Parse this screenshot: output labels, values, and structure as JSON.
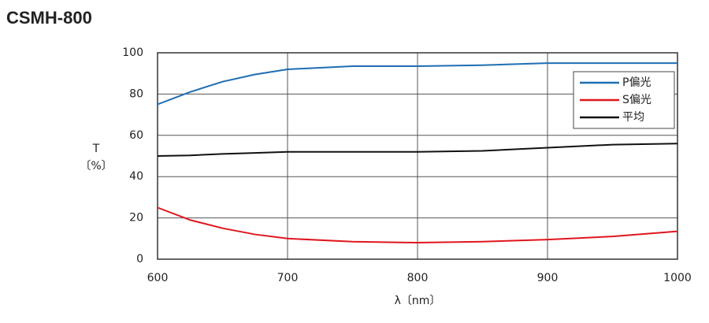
{
  "chart_data": {
    "type": "line",
    "title": "CSMH-800",
    "xlabel": "λ〔nm〕",
    "ylabel": "T",
    "ylabel_unit": "〔%〕",
    "x": [
      600,
      625,
      650,
      675,
      700,
      750,
      800,
      850,
      900,
      950,
      1000
    ],
    "series": [
      {
        "name": "P偏光",
        "color": "#1f6db3",
        "values": [
          75,
          81,
          86,
          89.5,
          92,
          93.5,
          93.5,
          94,
          95,
          95,
          95
        ]
      },
      {
        "name": "S偏光",
        "color": "#e0161e",
        "values": [
          25,
          19,
          15,
          12,
          10,
          8.5,
          8,
          8.5,
          9.5,
          11,
          13.5
        ]
      },
      {
        "name": "平均",
        "color": "#111111",
        "values": [
          50,
          50.3,
          51,
          51.5,
          52,
          52,
          52,
          52.5,
          54,
          55.5,
          56
        ]
      }
    ],
    "xlim": [
      600,
      1000
    ],
    "xticks": [
      600,
      700,
      800,
      900,
      1000
    ],
    "ylim": [
      0,
      100
    ],
    "yticks": [
      0,
      20,
      40,
      60,
      80,
      100
    ],
    "grid": true,
    "legend": "upper right"
  }
}
